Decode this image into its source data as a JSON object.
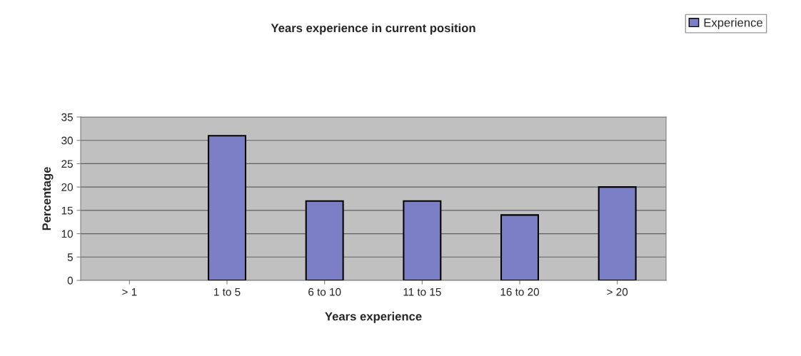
{
  "chart_data": {
    "type": "bar",
    "title": "Years experience in current position",
    "xlabel": "Years experience",
    "ylabel": "Percentage",
    "categories": [
      "> 1",
      "1 to 5",
      "6 to 10",
      "11 to 15",
      "16 to 20",
      "> 20"
    ],
    "series": [
      {
        "name": "Experience",
        "color": "#7b80c6",
        "values": [
          0,
          31,
          17,
          17,
          14,
          20
        ]
      }
    ],
    "ylim": [
      0,
      35
    ],
    "yticks": [
      0,
      5,
      10,
      15,
      20,
      25,
      30,
      35
    ],
    "grid": "y",
    "legend": "top right"
  }
}
